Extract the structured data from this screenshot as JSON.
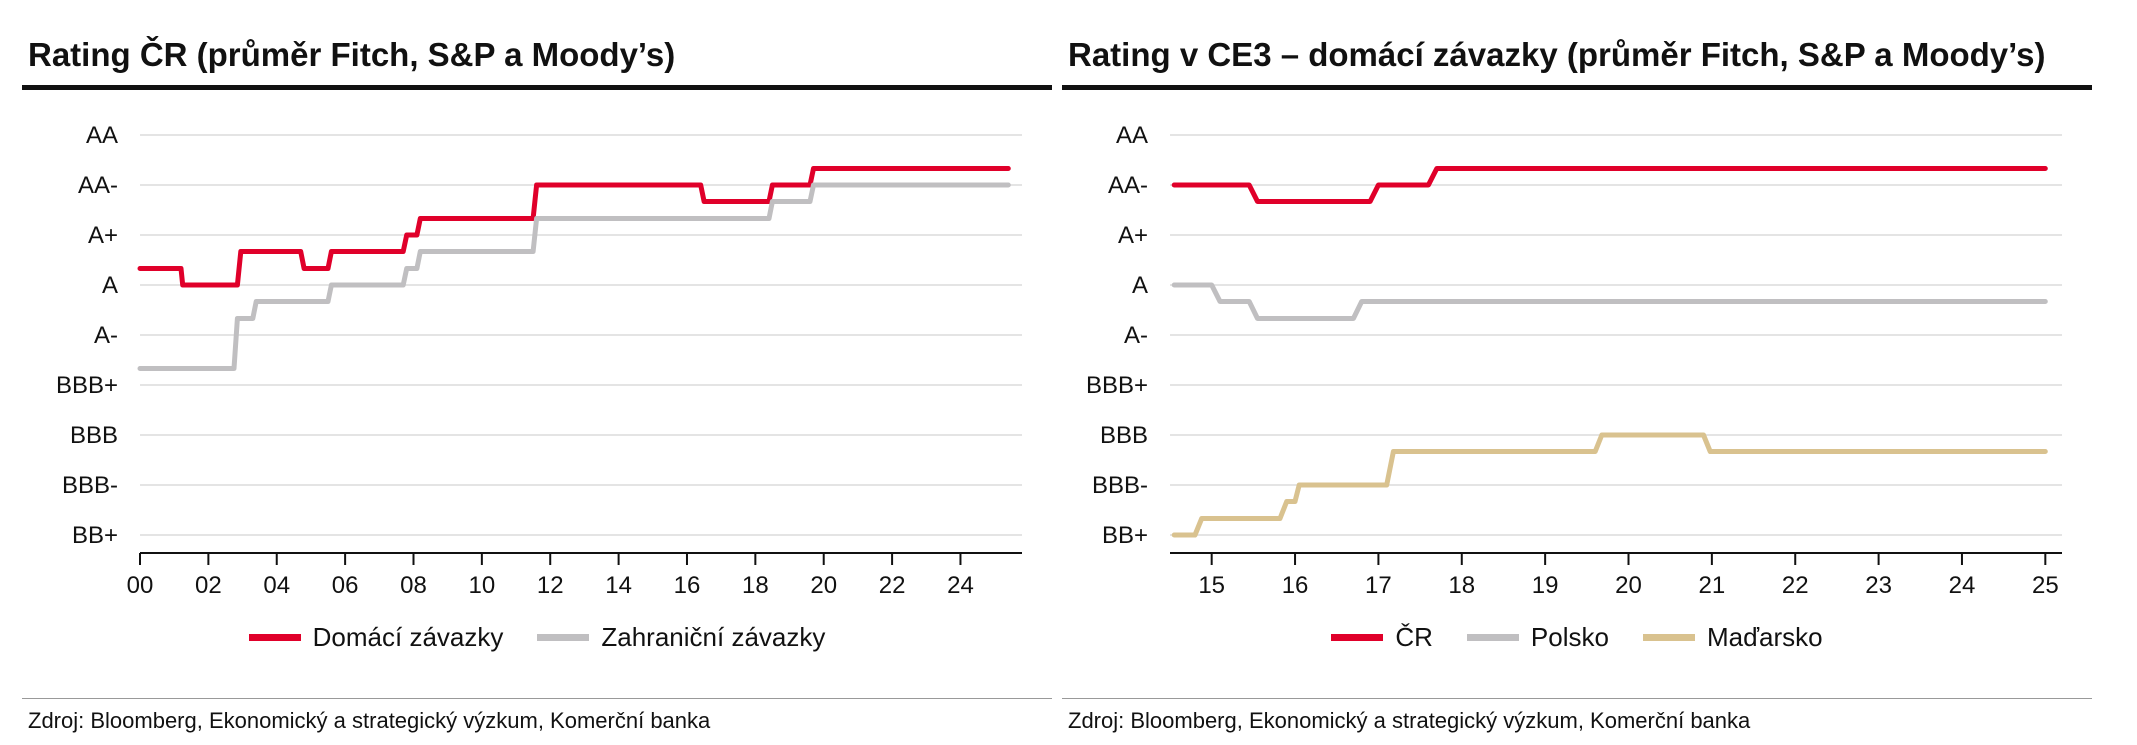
{
  "chart_data": [
    {
      "type": "line",
      "step": true,
      "title": "Rating ČR (průměr Fitch, S&P a Moody’s)",
      "y_categories": [
        "BB+",
        "BBB-",
        "BBB",
        "BBB+",
        "A-",
        "A",
        "A+",
        "AA-",
        "AA"
      ],
      "y_index_range": [
        0,
        8
      ],
      "x_tick_labels": [
        "00",
        "02",
        "04",
        "06",
        "08",
        "10",
        "12",
        "14",
        "16",
        "18",
        "20",
        "22",
        "24"
      ],
      "x_ticks": [
        2000,
        2002,
        2004,
        2006,
        2008,
        2010,
        2012,
        2014,
        2016,
        2018,
        2020,
        2022,
        2024
      ],
      "xlim": [
        2000,
        2025.8
      ],
      "grid": true,
      "legend_position": "bottom",
      "series": [
        {
          "name": "Domácí závazky",
          "color": "#e0002a",
          "points": [
            [
              2000.0,
              5.33
            ],
            [
              2001.2,
              5.33
            ],
            [
              2001.25,
              5.0
            ],
            [
              2002.85,
              5.0
            ],
            [
              2002.95,
              5.67
            ],
            [
              2004.7,
              5.67
            ],
            [
              2004.8,
              5.33
            ],
            [
              2005.5,
              5.33
            ],
            [
              2005.6,
              5.67
            ],
            [
              2007.7,
              5.67
            ],
            [
              2007.8,
              6.0
            ],
            [
              2008.1,
              6.0
            ],
            [
              2008.2,
              6.33
            ],
            [
              2011.5,
              6.33
            ],
            [
              2011.6,
              7.0
            ],
            [
              2016.4,
              7.0
            ],
            [
              2016.5,
              6.67
            ],
            [
              2018.4,
              6.67
            ],
            [
              2018.5,
              7.0
            ],
            [
              2019.6,
              7.0
            ],
            [
              2019.7,
              7.33
            ],
            [
              2025.4,
              7.33
            ]
          ]
        },
        {
          "name": "Zahraniční závazky",
          "color": "#c0bfc1",
          "points": [
            [
              2000.0,
              3.33
            ],
            [
              2002.75,
              3.33
            ],
            [
              2002.85,
              4.33
            ],
            [
              2003.3,
              4.33
            ],
            [
              2003.4,
              4.67
            ],
            [
              2005.5,
              4.67
            ],
            [
              2005.6,
              5.0
            ],
            [
              2007.7,
              5.0
            ],
            [
              2007.8,
              5.33
            ],
            [
              2008.1,
              5.33
            ],
            [
              2008.2,
              5.67
            ],
            [
              2011.5,
              5.67
            ],
            [
              2011.6,
              6.33
            ],
            [
              2018.4,
              6.33
            ],
            [
              2018.5,
              6.67
            ],
            [
              2019.6,
              6.67
            ],
            [
              2019.7,
              7.0
            ],
            [
              2025.4,
              7.0
            ]
          ]
        }
      ]
    },
    {
      "type": "line",
      "step": true,
      "title": "Rating v CE3 – domácí závazky (průměr Fitch, S&P a Moody’s)",
      "y_categories": [
        "BB+",
        "BBB-",
        "BBB",
        "BBB+",
        "A-",
        "A",
        "A+",
        "AA-",
        "AA"
      ],
      "y_index_range": [
        0,
        8
      ],
      "x_tick_labels": [
        "15",
        "16",
        "17",
        "18",
        "19",
        "20",
        "21",
        "22",
        "23",
        "24",
        "25"
      ],
      "x_ticks": [
        15,
        16,
        17,
        18,
        19,
        20,
        21,
        22,
        23,
        24,
        25
      ],
      "xlim": [
        14.5,
        25.2
      ],
      "grid": true,
      "legend_position": "bottom",
      "series": [
        {
          "name": "ČR",
          "color": "#e0002a",
          "points": [
            [
              14.55,
              7.0
            ],
            [
              15.45,
              7.0
            ],
            [
              15.55,
              6.67
            ],
            [
              16.9,
              6.67
            ],
            [
              17.0,
              7.0
            ],
            [
              17.6,
              7.0
            ],
            [
              17.7,
              7.33
            ],
            [
              25.0,
              7.33
            ]
          ]
        },
        {
          "name": "Polsko",
          "color": "#c0bfc1",
          "points": [
            [
              14.55,
              5.0
            ],
            [
              15.0,
              5.0
            ],
            [
              15.1,
              4.67
            ],
            [
              15.45,
              4.67
            ],
            [
              15.55,
              4.33
            ],
            [
              16.7,
              4.33
            ],
            [
              16.8,
              4.67
            ],
            [
              25.0,
              4.67
            ]
          ]
        },
        {
          "name": "Maďarsko",
          "color": "#d9c28f",
          "points": [
            [
              14.55,
              0.0
            ],
            [
              14.8,
              0.0
            ],
            [
              14.88,
              0.33
            ],
            [
              15.82,
              0.33
            ],
            [
              15.9,
              0.67
            ],
            [
              16.0,
              0.67
            ],
            [
              16.05,
              1.0
            ],
            [
              17.1,
              1.0
            ],
            [
              17.18,
              1.67
            ],
            [
              19.6,
              1.67
            ],
            [
              19.68,
              2.0
            ],
            [
              20.9,
              2.0
            ],
            [
              20.98,
              1.67
            ],
            [
              25.0,
              1.67
            ]
          ]
        }
      ]
    }
  ],
  "legends": {
    "left": [
      "Domácí závazky",
      "Zahraniční závazky"
    ],
    "right": [
      "ČR",
      "Polsko",
      "Maďarsko"
    ]
  },
  "source": {
    "left": "Zdroj: Bloomberg, Ekonomický a strategický výzkum, Komerční banka",
    "right": "Zdroj: Bloomberg, Ekonomický a strategický výzkum, Komerční banka"
  }
}
